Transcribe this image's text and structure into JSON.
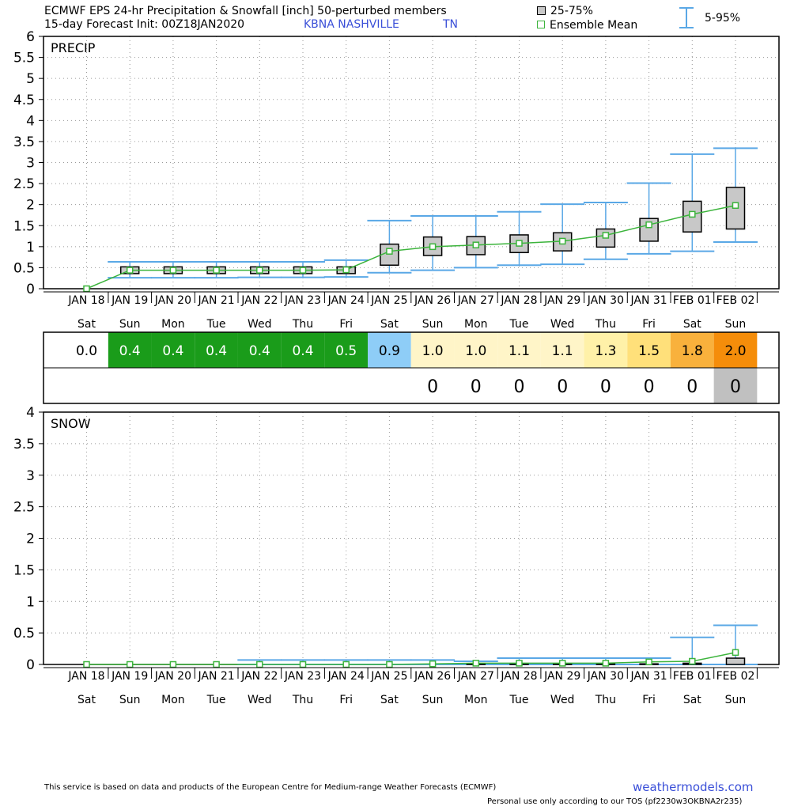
{
  "header": {
    "title": "ECMWF EPS 24-hr Precipitation & Snowfall [inch]  50-perturbed members",
    "subtitle": "15-day Forecast Init: 00Z18JAN2020",
    "station": "KBNA  NASHVILLE",
    "state": "TN",
    "legend_box": "25-75%",
    "legend_mean": "Ensemble Mean",
    "legend_whisker": "5-95%"
  },
  "colors": {
    "box_fill": "#c8c8c8",
    "whisker": "#5aa8e6",
    "mean_line": "#3cb43c",
    "grid": "#9a9a9a",
    "header_blue": "#3a4fd8"
  },
  "chart_data": [
    {
      "type": "box",
      "title": "PRECIP",
      "ylim": [
        0,
        6
      ],
      "y_ticks": [
        "0",
        "0.5",
        "1",
        "1.5",
        "2",
        "2.5",
        "3",
        "3.5",
        "4",
        "4.5",
        "5",
        "5.5",
        "6"
      ],
      "dates": [
        "JAN 18",
        "JAN 19",
        "JAN 20",
        "JAN 21",
        "JAN 22",
        "JAN 23",
        "JAN 24",
        "JAN 25",
        "JAN 26",
        "JAN 27",
        "JAN 28",
        "JAN 29",
        "JAN 30",
        "JAN 31",
        "FEB 01",
        "FEB 02"
      ],
      "days": [
        "Sat",
        "Sun",
        "Mon",
        "Tue",
        "Wed",
        "Thu",
        "Fri",
        "Sat",
        "Sun",
        "Mon",
        "Tue",
        "Wed",
        "Thu",
        "Fri",
        "Sat",
        "Sun"
      ],
      "grid": true,
      "mean": [
        0.0,
        0.44,
        0.44,
        0.44,
        0.44,
        0.44,
        0.45,
        0.89,
        1.0,
        1.04,
        1.08,
        1.13,
        1.27,
        1.52,
        1.77,
        1.98
      ],
      "p25": [
        0.0,
        0.36,
        0.36,
        0.36,
        0.36,
        0.36,
        0.36,
        0.56,
        0.79,
        0.81,
        0.86,
        0.9,
        0.99,
        1.13,
        1.35,
        1.42
      ],
      "p75": [
        0.0,
        0.52,
        0.52,
        0.52,
        0.52,
        0.52,
        0.52,
        1.06,
        1.23,
        1.24,
        1.28,
        1.33,
        1.42,
        1.67,
        2.08,
        2.41
      ],
      "p05": [
        0.0,
        0.26,
        0.26,
        0.26,
        0.27,
        0.27,
        0.28,
        0.38,
        0.44,
        0.5,
        0.56,
        0.58,
        0.7,
        0.83,
        0.89,
        1.11
      ],
      "p95": [
        0.0,
        0.64,
        0.64,
        0.64,
        0.64,
        0.64,
        0.68,
        1.62,
        1.73,
        1.73,
        1.83,
        2.01,
        2.05,
        2.51,
        3.2,
        3.34
      ]
    },
    {
      "type": "box",
      "title": "SNOW",
      "ylim": [
        0,
        4
      ],
      "y_ticks": [
        "0",
        "0.5",
        "1",
        "1.5",
        "2",
        "2.5",
        "3",
        "3.5",
        "4"
      ],
      "dates": [
        "JAN 18",
        "JAN 19",
        "JAN 20",
        "JAN 21",
        "JAN 22",
        "JAN 23",
        "JAN 24",
        "JAN 25",
        "JAN 26",
        "JAN 27",
        "JAN 28",
        "JAN 29",
        "JAN 30",
        "JAN 31",
        "FEB 01",
        "FEB 02"
      ],
      "days": [
        "Sat",
        "Sun",
        "Mon",
        "Tue",
        "Wed",
        "Thu",
        "Fri",
        "Sat",
        "Sun",
        "Mon",
        "Tue",
        "Wed",
        "Thu",
        "Fri",
        "Sat",
        "Sun"
      ],
      "grid": true,
      "mean": [
        0.0,
        0.0,
        0.0,
        0.0,
        0.0,
        0.0,
        0.0,
        0.0,
        0.01,
        0.02,
        0.02,
        0.02,
        0.02,
        0.04,
        0.05,
        0.19
      ],
      "p25": [
        0,
        0,
        0,
        0,
        0,
        0,
        0,
        0,
        0,
        0,
        0,
        0,
        0,
        0,
        0,
        0
      ],
      "p75": [
        0,
        0,
        0,
        0,
        0,
        0,
        0,
        0,
        0,
        0.01,
        0.01,
        0.01,
        0.01,
        0.01,
        0.02,
        0.1
      ],
      "p05": [
        0,
        0,
        0,
        0,
        0,
        0,
        0,
        0,
        0,
        0,
        0,
        0,
        0,
        0,
        0,
        0
      ],
      "p95": [
        0.0,
        0.0,
        0.0,
        0.0,
        0.07,
        0.07,
        0.07,
        0.07,
        0.07,
        0.05,
        0.1,
        0.1,
        0.1,
        0.1,
        0.43,
        0.62
      ]
    },
    {
      "type": "table",
      "rows": [
        {
          "name": "precip-totals",
          "values": [
            "0.0",
            "0.4",
            "0.4",
            "0.4",
            "0.4",
            "0.4",
            "0.5",
            "0.9",
            "1.0",
            "1.0",
            "1.1",
            "1.1",
            "1.3",
            "1.5",
            "1.8",
            "2.0"
          ],
          "fills": [
            "#ffffff",
            "#1a9c1a",
            "#1a9c1a",
            "#1a9c1a",
            "#1a9c1a",
            "#1a9c1a",
            "#1a9c1a",
            "#8ecdf7",
            "#fff5c8",
            "#fff5c8",
            "#fff5c8",
            "#fff5c8",
            "#fff1a8",
            "#ffe07a",
            "#f9b13c",
            "#f58d0a"
          ],
          "text": [
            "#000000",
            "#ffffff",
            "#ffffff",
            "#ffffff",
            "#ffffff",
            "#ffffff",
            "#ffffff",
            "#000000",
            "#000000",
            "#000000",
            "#000000",
            "#000000",
            "#000000",
            "#000000",
            "#000000",
            "#000000"
          ]
        },
        {
          "name": "snow-totals",
          "values": [
            "",
            "",
            "",
            "",
            "",
            "",
            "",
            "",
            "0",
            "0",
            "0",
            "0",
            "0",
            "0",
            "0",
            "0"
          ],
          "fills": [
            "#ffffff",
            "#ffffff",
            "#ffffff",
            "#ffffff",
            "#ffffff",
            "#ffffff",
            "#ffffff",
            "#ffffff",
            "#ffffff",
            "#ffffff",
            "#ffffff",
            "#ffffff",
            "#ffffff",
            "#ffffff",
            "#ffffff",
            "#c0c0c0"
          ]
        }
      ]
    }
  ],
  "footer": {
    "notice": "This service is based on data and products of the European Centre for Medium-range Weather Forecasts (ECMWF)",
    "site": "weathermodels.com",
    "tos": "Personal use only according to our TOS (pf2230w3OKBNA2r235)"
  }
}
